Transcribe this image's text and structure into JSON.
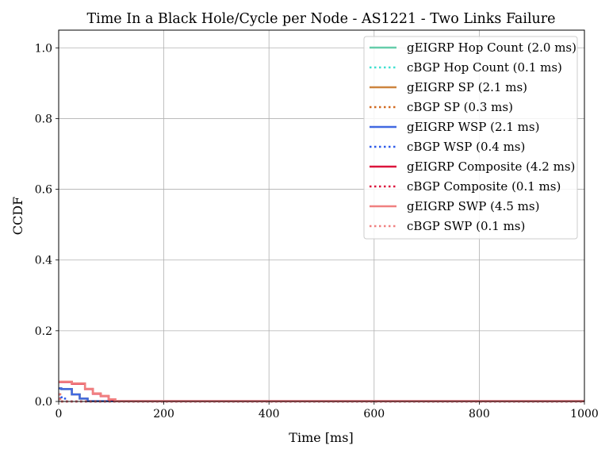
{
  "chart_data": {
    "type": "line",
    "title": "Time In a Black Hole/Cycle per Node - AS1221 - Two Links Failure",
    "xlabel": "Time [ms]",
    "ylabel": "CCDF",
    "xlim": [
      0,
      1000
    ],
    "ylim": [
      0,
      1.05
    ],
    "xticks": [
      0,
      200,
      400,
      600,
      800,
      1000
    ],
    "yticks": [
      0.0,
      0.2,
      0.4,
      0.6,
      0.8,
      1.0
    ],
    "xtick_labels": [
      "0",
      "200",
      "400",
      "600",
      "800",
      "1000"
    ],
    "ytick_labels": [
      "0.0",
      "0.2",
      "0.4",
      "0.6",
      "0.8",
      "1.0"
    ],
    "grid": true,
    "legend_position": "top-right",
    "series": [
      {
        "name": "gEIGRP Hop Count (2.0 ms)",
        "color": "#66cdaa",
        "dash": "solid",
        "x": [
          0,
          5,
          5,
          25,
          25,
          40,
          40,
          55,
          55,
          1000
        ],
        "y": [
          0.037,
          0.037,
          0.035,
          0.035,
          0.02,
          0.02,
          0.008,
          0.008,
          0.001,
          0.001
        ]
      },
      {
        "name": "cBGP Hop Count (0.1 ms)",
        "color": "#40e0d0",
        "dash": "dotted",
        "x": [
          0,
          2,
          2,
          1000
        ],
        "y": [
          0.02,
          0.02,
          0.0,
          0.0
        ]
      },
      {
        "name": "gEIGRP SP (2.1 ms)",
        "color": "#cd853f",
        "dash": "solid",
        "x": [
          0,
          5,
          5,
          25,
          25,
          40,
          40,
          55,
          55,
          1000
        ],
        "y": [
          0.037,
          0.037,
          0.035,
          0.035,
          0.02,
          0.02,
          0.008,
          0.008,
          0.001,
          0.001
        ]
      },
      {
        "name": "cBGP SP (0.3 ms)",
        "color": "#d2691e",
        "dash": "dotted",
        "x": [
          0,
          3,
          3,
          1000
        ],
        "y": [
          0.02,
          0.02,
          0.0,
          0.0
        ]
      },
      {
        "name": "gEIGRP WSP (2.1 ms)",
        "color": "#4169e1",
        "dash": "solid",
        "x": [
          0,
          5,
          5,
          25,
          25,
          40,
          40,
          55,
          55,
          1000
        ],
        "y": [
          0.037,
          0.037,
          0.035,
          0.035,
          0.02,
          0.02,
          0.008,
          0.008,
          0.001,
          0.001
        ]
      },
      {
        "name": "cBGP WSP (0.4 ms)",
        "color": "#2e5bea",
        "dash": "dotted",
        "x": [
          0,
          4,
          4,
          12,
          12,
          1000
        ],
        "y": [
          0.02,
          0.02,
          0.012,
          0.012,
          0.0,
          0.0
        ]
      },
      {
        "name": "gEIGRP Composite (4.2 ms)",
        "color": "#dc143c",
        "dash": "solid",
        "x": [
          0,
          25,
          25,
          50,
          50,
          65,
          65,
          80,
          80,
          95,
          95,
          105,
          105,
          1000
        ],
        "y": [
          0.055,
          0.055,
          0.05,
          0.05,
          0.035,
          0.035,
          0.022,
          0.022,
          0.015,
          0.015,
          0.005,
          0.005,
          0.001,
          0.001
        ]
      },
      {
        "name": "cBGP Composite (0.1 ms)",
        "color": "#dc143c",
        "dash": "dotted",
        "x": [
          0,
          2,
          2,
          1000
        ],
        "y": [
          0.02,
          0.02,
          0.0,
          0.0
        ]
      },
      {
        "name": "gEIGRP SWP (4.5 ms)",
        "color": "#f08080",
        "dash": "solid",
        "x": [
          0,
          25,
          25,
          50,
          50,
          65,
          65,
          80,
          80,
          95,
          95,
          108,
          108,
          1000
        ],
        "y": [
          0.056,
          0.056,
          0.051,
          0.051,
          0.036,
          0.036,
          0.023,
          0.023,
          0.016,
          0.016,
          0.006,
          0.006,
          0.001,
          0.001
        ]
      },
      {
        "name": "cBGP SWP (0.1 ms)",
        "color": "#f08080",
        "dash": "dotted",
        "x": [
          0,
          2,
          2,
          1000
        ],
        "y": [
          0.02,
          0.02,
          0.0,
          0.0
        ]
      }
    ]
  }
}
